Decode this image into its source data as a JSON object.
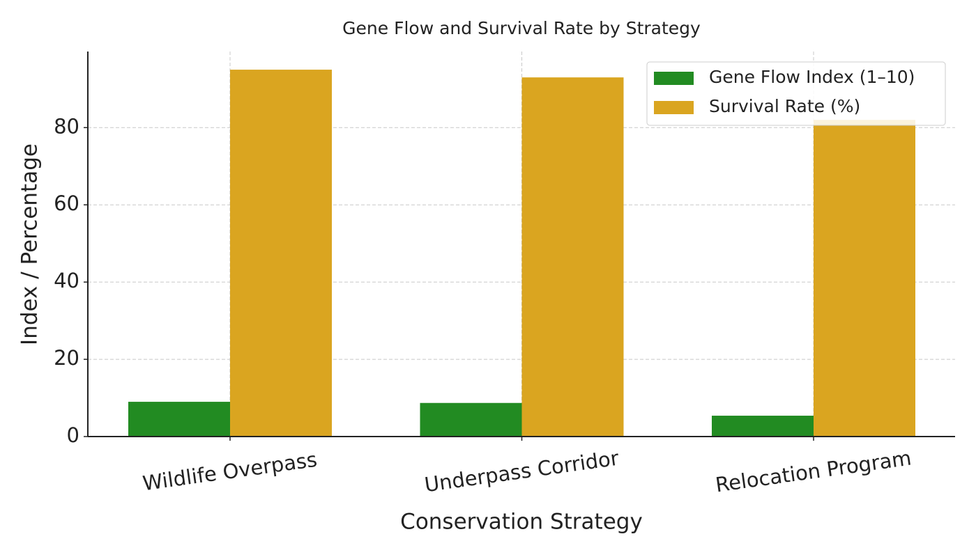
{
  "chart_data": {
    "type": "bar",
    "title": "Gene Flow and Survival Rate by Strategy",
    "xlabel": "Conservation Strategy",
    "ylabel": "Index / Percentage",
    "categories": [
      "Wildlife Overpass",
      "Underpass Corridor",
      "Relocation Program"
    ],
    "series": [
      {
        "name": "Gene Flow Index (1–10)",
        "color": "#228b22",
        "values": [
          9.0,
          8.7,
          5.4
        ]
      },
      {
        "name": "Survival Rate (%)",
        "color": "#daa520",
        "values": [
          95,
          93,
          82
        ]
      }
    ],
    "ylim": [
      0,
      99.7
    ],
    "yticks": [
      0,
      20,
      40,
      60,
      80
    ],
    "grid": true,
    "legend": "upper right"
  }
}
